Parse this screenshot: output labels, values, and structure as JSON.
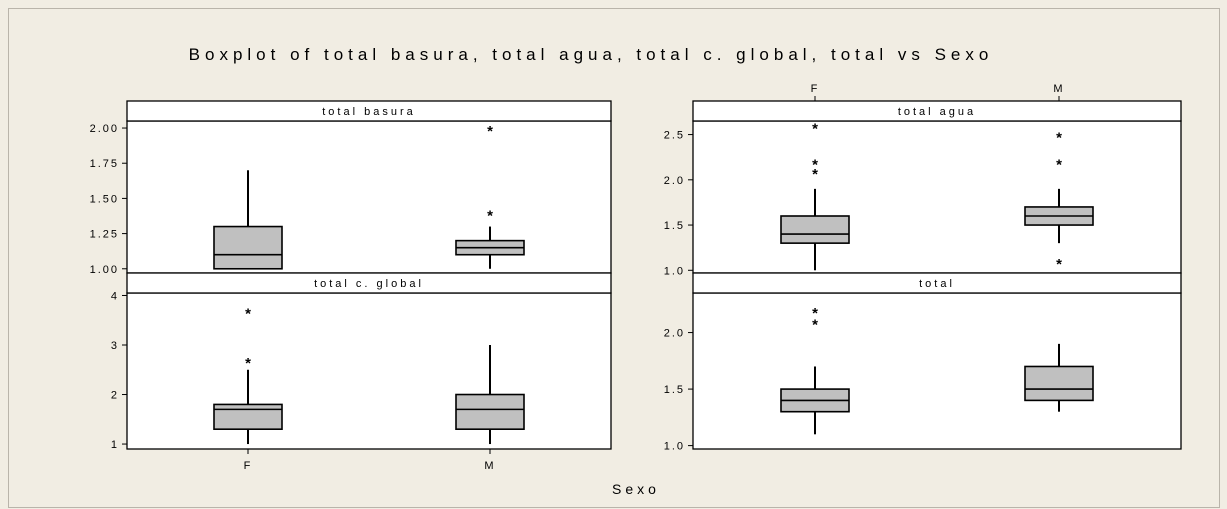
{
  "chart_data": {
    "type": "boxplot",
    "title": "Boxplot of total basura, total agua, total c. global, total vs Sexo",
    "xlabel": "Sexo",
    "categories": [
      "F",
      "M"
    ],
    "outlier_symbol": "*",
    "box_color": "#c0c0c0",
    "background_color": "#f1ede3",
    "panels": [
      {
        "name": "total basura",
        "ylim": [
          0.97,
          2.05
        ],
        "yticks": [
          1.0,
          1.25,
          1.5,
          1.75,
          2.0
        ],
        "ytick_labels": [
          "1.00",
          "1.25",
          "1.50",
          "1.75",
          "2.00"
        ],
        "ytick_side": "left",
        "groups": [
          {
            "category": "F",
            "min": 1.0,
            "q1": 1.0,
            "median": 1.1,
            "q3": 1.3,
            "max": 1.7,
            "outliers": []
          },
          {
            "category": "M",
            "min": 1.0,
            "q1": 1.1,
            "median": 1.15,
            "q3": 1.2,
            "max": 1.3,
            "outliers": [
              1.4,
              2.0
            ]
          }
        ]
      },
      {
        "name": "total agua",
        "ylim": [
          0.97,
          2.65
        ],
        "yticks": [
          1.0,
          1.5,
          2.0,
          2.5
        ],
        "ytick_labels": [
          "1.0",
          "1.5",
          "2.0",
          "2.5"
        ],
        "ytick_side": "left",
        "groups": [
          {
            "category": "F",
            "min": 1.0,
            "q1": 1.3,
            "median": 1.4,
            "q3": 1.6,
            "max": 1.9,
            "outliers": [
              2.1,
              2.2,
              2.6
            ]
          },
          {
            "category": "M",
            "min": 1.3,
            "q1": 1.5,
            "median": 1.6,
            "q3": 1.7,
            "max": 1.9,
            "outliers": [
              1.1,
              2.2,
              2.5
            ]
          }
        ]
      },
      {
        "name": "total c. global",
        "ylim": [
          0.9,
          4.05
        ],
        "yticks": [
          1,
          2,
          3,
          4
        ],
        "ytick_labels": [
          "1",
          "2",
          "3",
          "4"
        ],
        "ytick_side": "left",
        "groups": [
          {
            "category": "F",
            "min": 1.0,
            "q1": 1.3,
            "median": 1.7,
            "q3": 1.8,
            "max": 2.5,
            "outliers": [
              2.7,
              3.7
            ]
          },
          {
            "category": "M",
            "min": 1.0,
            "q1": 1.3,
            "median": 1.7,
            "q3": 2.0,
            "max": 3.0,
            "outliers": []
          }
        ]
      },
      {
        "name": "total",
        "ylim": [
          0.97,
          2.35
        ],
        "yticks": [
          1.0,
          1.5,
          2.0
        ],
        "ytick_labels": [
          "1.0",
          "1.5",
          "2.0"
        ],
        "ytick_side": "left",
        "groups": [
          {
            "category": "F",
            "min": 1.1,
            "q1": 1.3,
            "median": 1.4,
            "q3": 1.5,
            "max": 1.7,
            "outliers": [
              2.1,
              2.2
            ]
          },
          {
            "category": "M",
            "min": 1.3,
            "q1": 1.4,
            "median": 1.5,
            "q3": 1.7,
            "max": 1.9,
            "outliers": []
          }
        ]
      }
    ]
  }
}
